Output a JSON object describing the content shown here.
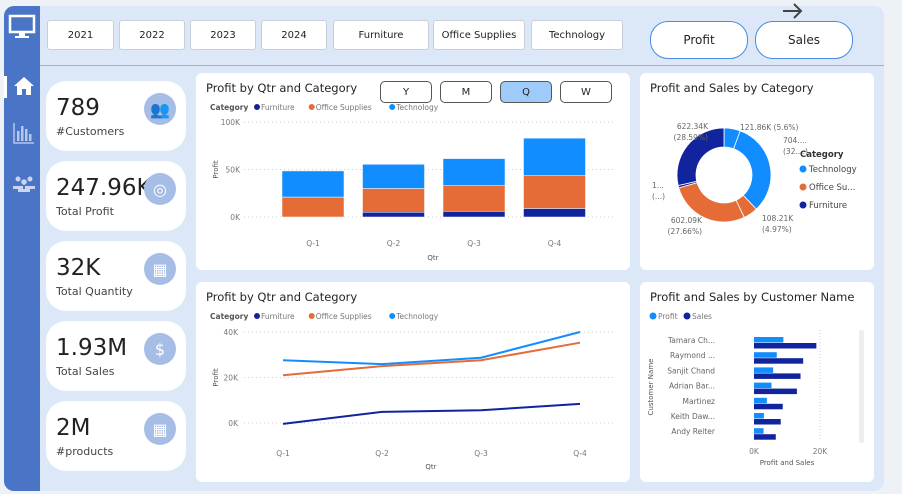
{
  "slicers": [
    "2021",
    "2022",
    "2023",
    "2024",
    "Furniture",
    "Office Supplies",
    "Technology"
  ],
  "toggles": {
    "profit": "Profit",
    "sales": "Sales"
  },
  "kpis": [
    {
      "value": "789",
      "label": "#Customers",
      "icon": "people-icon"
    },
    {
      "value": "247.96K",
      "label": "Total Profit",
      "icon": "coins-icon"
    },
    {
      "value": "32K",
      "label": "Total Quantity",
      "icon": "boxes-icon"
    },
    {
      "value": "1.93M",
      "label": "Total Sales",
      "icon": "dollar-icon"
    },
    {
      "value": "2M",
      "label": "#products",
      "icon": "boxes-icon"
    }
  ],
  "granularity": {
    "options": [
      "Y",
      "M",
      "Q",
      "W"
    ],
    "selected": "Q"
  },
  "colors": {
    "Furniture": "#12239e",
    "Office Supplies": "#e66c37",
    "Technology": "#118dff"
  },
  "chart_data": [
    {
      "type": "bar",
      "stacked": true,
      "title": "Profit by Qtr and Category",
      "legend_title": "Category",
      "xlabel": "Qtr",
      "ylabel": "Profit",
      "categories": [
        "Q-1",
        "Q-2",
        "Q-3",
        "Q-4"
      ],
      "yticks": [
        "0K",
        "50K",
        "100K"
      ],
      "ylim": [
        0,
        100000
      ],
      "series": [
        {
          "name": "Furniture",
          "values": [
            -400,
            5000,
            6000,
            9000
          ]
        },
        {
          "name": "Office Supplies",
          "values": [
            21000,
            25000,
            27000,
            34500
          ]
        },
        {
          "name": "Technology",
          "values": [
            27500,
            25500,
            28500,
            39500
          ]
        }
      ]
    },
    {
      "type": "line",
      "title": "Profit by Qtr and Category",
      "legend_title": "Category",
      "xlabel": "Qtr",
      "ylabel": "Profit",
      "categories": [
        "Q-1",
        "Q-2",
        "Q-3",
        "Q-4"
      ],
      "yticks": [
        "0K",
        "20K",
        "40K"
      ],
      "ylim": [
        -5000,
        45000
      ],
      "series": [
        {
          "name": "Furniture",
          "values": [
            -400,
            4900,
            5600,
            8400
          ]
        },
        {
          "name": "Office Supplies",
          "values": [
            21000,
            25000,
            27600,
            35300
          ]
        },
        {
          "name": "Technology",
          "values": [
            27600,
            25900,
            28700,
            40000
          ]
        }
      ]
    },
    {
      "type": "pie",
      "donut": true,
      "title": "Profit and Sales by Category",
      "legend_title": "Category",
      "legend": [
        "Technology",
        "Office Su...",
        "Furniture"
      ],
      "slices": [
        {
          "name": "Technology",
          "measure": "Profit",
          "value": 121860,
          "label": "121.86K (5.6%)",
          "color": "#118dff"
        },
        {
          "name": "Technology",
          "measure": "Sales",
          "value": 704000,
          "label": "704....",
          "label2": "(32....)",
          "color": "#118dff"
        },
        {
          "name": "Office Supplies",
          "measure": "Profit",
          "value": 108210,
          "label": "108.21K",
          "label2": "(4.97%)",
          "color": "#e66c37"
        },
        {
          "name": "Office Supplies",
          "measure": "Sales",
          "value": 602090,
          "label": "602.09K",
          "label2": "(27.66%)",
          "color": "#e66c37"
        },
        {
          "name": "Furniture",
          "measure": "Profit",
          "value": 18000,
          "label": "1...",
          "label2": "(...)",
          "color": "#12239e"
        },
        {
          "name": "Furniture",
          "measure": "Sales",
          "value": 622340,
          "label": "622.34K",
          "label2": "(28.59%)",
          "color": "#12239e"
        }
      ]
    },
    {
      "type": "bar",
      "orientation": "horizontal",
      "title": "Profit and Sales by Customer Name",
      "xlabel": "Profit and Sales",
      "ylabel": "Customer Name",
      "xticks": [
        "0K",
        "20K"
      ],
      "xlim": [
        0,
        20000
      ],
      "categories": [
        "Tamara Ch...",
        "Raymond ...",
        "Sanjit Chand",
        "Adrian Bar...",
        "Martinez",
        "Keith Daw...",
        "Andy Reiter"
      ],
      "series": [
        {
          "name": "Profit",
          "color": "#118dff",
          "values": [
            8900,
            6900,
            5800,
            5300,
            3900,
            3000,
            2900
          ]
        },
        {
          "name": "Sales",
          "color": "#12239e",
          "values": [
            18900,
            14900,
            14100,
            13000,
            8700,
            8100,
            6600
          ]
        }
      ]
    }
  ]
}
